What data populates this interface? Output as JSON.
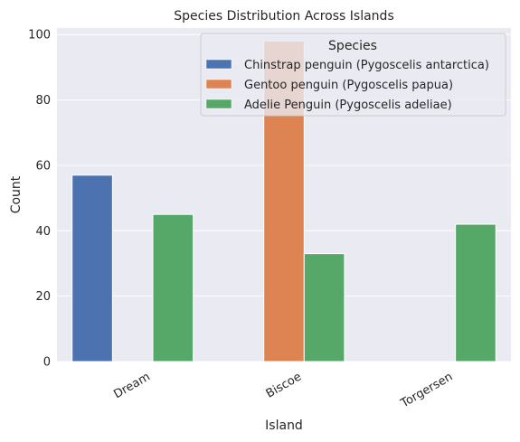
{
  "chart_data": {
    "type": "bar",
    "title": "Species Distribution Across Islands",
    "xlabel": "Island",
    "ylabel": "Count",
    "categories": [
      "Dream",
      "Biscoe",
      "Torgersen"
    ],
    "ylim": [
      0,
      102
    ],
    "yticks": [
      0,
      20,
      40,
      60,
      80,
      100
    ],
    "grid": true,
    "x_tick_rotation": "30 degrees",
    "legend": {
      "title": "Species",
      "position": "top-right"
    },
    "series": [
      {
        "name": "Chinstrap penguin (Pygoscelis antarctica)",
        "color": "#4C72B0",
        "values": [
          57,
          0,
          0
        ]
      },
      {
        "name": "Gentoo penguin (Pygoscelis papua)",
        "color": "#DD8452",
        "values": [
          0,
          98,
          0
        ]
      },
      {
        "name": "Adelie Penguin (Pygoscelis adeliae)",
        "color": "#55A868",
        "values": [
          45,
          33,
          42
        ]
      }
    ]
  }
}
